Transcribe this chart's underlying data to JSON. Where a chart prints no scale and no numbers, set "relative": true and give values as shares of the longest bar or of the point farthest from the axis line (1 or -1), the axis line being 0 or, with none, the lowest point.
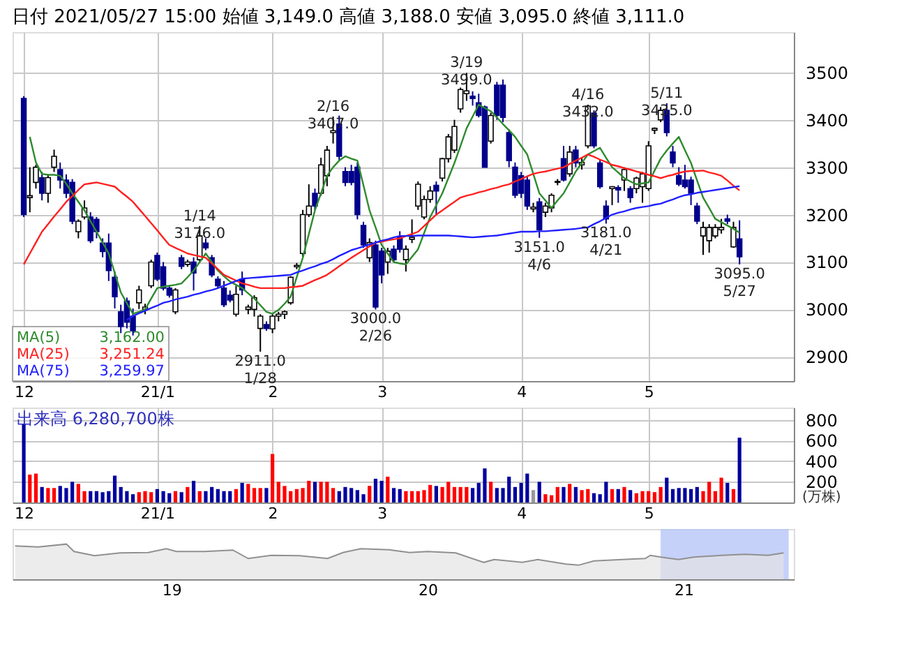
{
  "chart_data": [
    {
      "type": "candlestick",
      "title": "日付 2021/05/27 15:00 始値 3,149.0 高値 3,188.0 安値 3,095.0 終値 3,111.0",
      "categories": [
        "12",
        null,
        null,
        null,
        null,
        null,
        null,
        null,
        null,
        null,
        null,
        null,
        null,
        null,
        null,
        null,
        null,
        null,
        null,
        null,
        null,
        null,
        "21/1",
        null,
        null,
        null,
        null,
        null,
        null,
        null,
        null,
        null,
        null,
        null,
        null,
        null,
        null,
        null,
        null,
        null,
        null,
        "2",
        null,
        null,
        null,
        null,
        null,
        null,
        null,
        null,
        null,
        null,
        null,
        null,
        null,
        null,
        null,
        null,
        null,
        "3",
        null,
        null,
        null,
        null,
        null,
        null,
        null,
        null,
        null,
        null,
        null,
        null,
        null,
        null,
        null,
        null,
        null,
        null,
        null,
        null,
        null,
        null,
        "4",
        null,
        null,
        null,
        null,
        null,
        null,
        null,
        null,
        null,
        null,
        null,
        null,
        null,
        null,
        null,
        null,
        null,
        null,
        null,
        null,
        "5",
        null,
        null,
        null,
        null,
        null,
        null,
        null,
        null,
        null,
        null,
        null,
        null,
        null,
        null,
        null
      ],
      "ohlc": [
        [
          3445,
          3450,
          3195,
          3200
        ],
        [
          3236,
          3300,
          3205,
          3240
        ],
        [
          3268,
          3305,
          3255,
          3300
        ],
        [
          3278,
          3290,
          3230,
          3245
        ],
        [
          3245,
          3285,
          3225,
          3278
        ],
        [
          3300,
          3337,
          3290,
          3323
        ],
        [
          3295,
          3310,
          3255,
          3273
        ],
        [
          3273,
          3285,
          3235,
          3245
        ],
        [
          3268,
          3275,
          3180,
          3186
        ],
        [
          3164,
          3190,
          3150,
          3186
        ],
        [
          3195,
          3230,
          3190,
          3214
        ],
        [
          3195,
          3205,
          3140,
          3145
        ],
        [
          3190,
          3195,
          3150,
          3164
        ],
        [
          3140,
          3150,
          3110,
          3122
        ],
        [
          3140,
          3160,
          3060,
          3082
        ],
        [
          3068,
          3080,
          3002,
          3027
        ],
        [
          2995,
          3010,
          2950,
          2964
        ],
        [
          3018,
          3025,
          2960,
          2973
        ],
        [
          2986,
          3002,
          2945,
          2955
        ],
        [
          3014,
          3050,
          3001,
          3041
        ],
        [
          3000,
          3012,
          2990,
          3005
        ],
        [
          3050,
          3105,
          3045,
          3100
        ],
        [
          3114,
          3120,
          3060,
          3064
        ],
        [
          3090,
          3100,
          3040,
          3045
        ],
        [
          3045,
          3050,
          3025,
          3030
        ],
        [
          2995,
          3045,
          2990,
          3041
        ],
        [
          3109,
          3115,
          3085,
          3091
        ],
        [
          3095,
          3105,
          3090,
          3100
        ],
        [
          3100,
          3110,
          3040,
          3077
        ],
        [
          3105,
          3176,
          3100,
          3155
        ],
        [
          3140,
          3150,
          3125,
          3130
        ],
        [
          3109,
          3115,
          3068,
          3073
        ],
        [
          3064,
          3070,
          3045,
          3050
        ],
        [
          3045,
          3060,
          3005,
          3010
        ],
        [
          3030,
          3040,
          3015,
          3020
        ],
        [
          2990,
          3050,
          2985,
          3032
        ],
        [
          3064,
          3080,
          3030,
          3041
        ],
        [
          3000,
          3010,
          2990,
          3005
        ],
        [
          3000,
          3030,
          2985,
          3025
        ],
        [
          2960,
          2990,
          2911,
          2986
        ],
        [
          2968,
          2975,
          2955,
          2960
        ],
        [
          2959,
          2990,
          2950,
          2986
        ],
        [
          2986,
          2995,
          2975,
          2990
        ],
        [
          2990,
          2998,
          2980,
          2995
        ],
        [
          3014,
          3070,
          3010,
          3068
        ],
        [
          3090,
          3098,
          3085,
          3093
        ],
        [
          3118,
          3210,
          3110,
          3200
        ],
        [
          3200,
          3264,
          3195,
          3218
        ],
        [
          3245,
          3255,
          3210,
          3218
        ],
        [
          3245,
          3320,
          3240,
          3305
        ],
        [
          3282,
          3345,
          3260,
          3336
        ],
        [
          3373,
          3407,
          3350,
          3377
        ],
        [
          3391,
          3409,
          3315,
          3323
        ],
        [
          3291,
          3300,
          3260,
          3268
        ],
        [
          3291,
          3305,
          3262,
          3268
        ],
        [
          3300,
          3310,
          3190,
          3200
        ],
        [
          3177,
          3185,
          3130,
          3136
        ],
        [
          3109,
          3150,
          3100,
          3141
        ],
        [
          3136,
          3145,
          3000,
          3005
        ],
        [
          3123,
          3130,
          3055,
          3073
        ],
        [
          3100,
          3130,
          3075,
          3123
        ],
        [
          3127,
          3135,
          3100,
          3105
        ],
        [
          3154,
          3165,
          3120,
          3127
        ],
        [
          3105,
          3135,
          3080,
          3127
        ],
        [
          3148,
          3190,
          3140,
          3152
        ],
        [
          3218,
          3270,
          3210,
          3264
        ],
        [
          3195,
          3240,
          3190,
          3232
        ],
        [
          3232,
          3260,
          3225,
          3250
        ],
        [
          3262,
          3270,
          3200,
          3250
        ],
        [
          3277,
          3320,
          3270,
          3318
        ],
        [
          3318,
          3370,
          3310,
          3364
        ],
        [
          3336,
          3400,
          3330,
          3386
        ],
        [
          3423,
          3468,
          3415,
          3464
        ],
        [
          3455,
          3499,
          3440,
          3461
        ],
        [
          3450,
          3460,
          3430,
          3445
        ],
        [
          3436,
          3455,
          3405,
          3409
        ],
        [
          3427,
          3430,
          3300,
          3300
        ],
        [
          3355,
          3415,
          3350,
          3409
        ],
        [
          3473,
          3480,
          3400,
          3409
        ],
        [
          3473,
          3485,
          3395,
          3405
        ],
        [
          3373,
          3380,
          3300,
          3314
        ],
        [
          3300,
          3310,
          3235,
          3241
        ],
        [
          3282,
          3290,
          3235,
          3245
        ],
        [
          3273,
          3280,
          3210,
          3218
        ],
        [
          3212,
          3225,
          3205,
          3216
        ],
        [
          3227,
          3235,
          3151,
          3168
        ],
        [
          3205,
          3225,
          3195,
          3218
        ],
        [
          3214,
          3245,
          3205,
          3241
        ],
        [
          3268,
          3275,
          3262,
          3270
        ],
        [
          3318,
          3345,
          3270,
          3273
        ],
        [
          3286,
          3345,
          3280,
          3332
        ],
        [
          3336,
          3345,
          3300,
          3309
        ],
        [
          3305,
          3320,
          3295,
          3310
        ],
        [
          3345,
          3432,
          3340,
          3429
        ],
        [
          3414,
          3420,
          3340,
          3345
        ],
        [
          3309,
          3315,
          3255,
          3259
        ],
        [
          3218,
          3230,
          3181,
          3191
        ],
        [
          3255,
          3260,
          3220,
          3259
        ],
        [
          3257,
          3262,
          3225,
          3252
        ],
        [
          3273,
          3300,
          3250,
          3295
        ],
        [
          3255,
          3260,
          3225,
          3236
        ],
        [
          3255,
          3280,
          3245,
          3277
        ],
        [
          3259,
          3290,
          3225,
          3286
        ],
        [
          3255,
          3355,
          3250,
          3345
        ],
        [
          3378,
          3384,
          3370,
          3382
        ],
        [
          3400,
          3427,
          3395,
          3420
        ],
        [
          3420,
          3435,
          3365,
          3373
        ],
        [
          3332,
          3345,
          3300,
          3309
        ],
        [
          3282,
          3300,
          3260,
          3264
        ],
        [
          3273,
          3305,
          3255,
          3259
        ],
        [
          3273,
          3280,
          3220,
          3245
        ],
        [
          3218,
          3225,
          3180,
          3186
        ],
        [
          3155,
          3185,
          3115,
          3173
        ],
        [
          3145,
          3180,
          3120,
          3173
        ],
        [
          3155,
          3180,
          3150,
          3173
        ],
        [
          3168,
          3191,
          3160,
          3173
        ],
        [
          3191,
          3200,
          3180,
          3186
        ],
        [
          3132,
          3185,
          3130,
          3173
        ],
        [
          3149,
          3188,
          3095,
          3111
        ]
      ],
      "series": [
        {
          "name": "MA(5) 3,162.00",
          "type": "line",
          "color": "#2e8b2e",
          "values": [
            null,
            3364,
            3310,
            3286,
            3284,
            3284,
            3282,
            3265,
            3245,
            3227,
            3209,
            3186,
            3164,
            3141,
            3118,
            3077,
            3036,
            3013,
            2991,
            2995,
            3000,
            3023,
            3045,
            3048,
            3050,
            3052,
            3055,
            3068,
            3082,
            3100,
            3118,
            3100,
            3082,
            3070,
            3059,
            3052,
            3045,
            3034,
            3023,
            3009,
            2995,
            2991,
            2999,
            3012,
            3027,
            3068,
            3109,
            3159,
            3209,
            3245,
            3282,
            3300,
            3314,
            3323,
            3318,
            3314,
            3262,
            3209,
            3173,
            3136,
            3118,
            3100,
            3097,
            3095,
            3111,
            3127,
            3161,
            3195,
            3220,
            3245,
            3277,
            3309,
            3345,
            3382,
            3407,
            3432,
            3425,
            3418,
            3405,
            3391,
            3378,
            3364,
            3345,
            3327,
            3286,
            3245,
            3230,
            3214,
            3230,
            3245,
            3268,
            3291,
            3309,
            3327,
            3334,
            3341,
            3320,
            3300,
            3289,
            3277,
            3270,
            3264,
            3266,
            3268,
            3293,
            3318,
            3335,
            3350,
            3364,
            3336,
            3309,
            3272,
            3236,
            3214,
            3191,
            3184,
            3177,
            3170,
            3162
          ]
        },
        {
          "name": "MA(25) 3,251.24",
          "type": "line",
          "color": "#ff2020",
          "values": [
            3095,
            3118,
            3141,
            3164,
            3180,
            3196,
            3211,
            3227,
            3239,
            3252,
            3264,
            3266,
            3268,
            3265,
            3262,
            3259,
            3248,
            3238,
            3227,
            3212,
            3197,
            3182,
            3167,
            3151,
            3136,
            3130,
            3124,
            3118,
            3115,
            3112,
            3109,
            3097,
            3085,
            3073,
            3067,
            3061,
            3055,
            3052,
            3048,
            3045,
            3045,
            3045,
            3045,
            3045,
            3047,
            3048,
            3050,
            3056,
            3062,
            3067,
            3073,
            3082,
            3091,
            3100,
            3109,
            3117,
            3125,
            3133,
            3141,
            3143,
            3146,
            3148,
            3150,
            3155,
            3159,
            3164,
            3176,
            3188,
            3200,
            3209,
            3218,
            3227,
            3236,
            3240,
            3243,
            3247,
            3250,
            3254,
            3257,
            3261,
            3264,
            3270,
            3275,
            3281,
            3286,
            3289,
            3291,
            3294,
            3297,
            3300,
            3307,
            3314,
            3320,
            3327,
            3322,
            3316,
            3311,
            3305,
            3302,
            3298,
            3295,
            3291,
            3288,
            3284,
            3281,
            3277,
            3281,
            3284,
            3288,
            3291,
            3292,
            3292,
            3293,
            3289,
            3286,
            3282,
            3272,
            3261,
            3251
          ]
        },
        {
          "name": "MA(75) 3,259.97",
          "type": "line",
          "color": "#2020ff",
          "values": [
            null,
            null,
            null,
            null,
            null,
            null,
            null,
            null,
            null,
            null,
            null,
            null,
            null,
            null,
            null,
            null,
            null,
            2978,
            2986,
            2992,
            2997,
            3003,
            3008,
            3014,
            3017,
            3021,
            3024,
            3027,
            3031,
            3034,
            3038,
            3041,
            3045,
            3050,
            3055,
            3060,
            3065,
            3066,
            3067,
            3068,
            3069,
            3070,
            3071,
            3072,
            3073,
            3078,
            3082,
            3087,
            3091,
            3096,
            3100,
            3106,
            3113,
            3119,
            3125,
            3129,
            3133,
            3137,
            3141,
            3145,
            3148,
            3152,
            3155,
            3155,
            3155,
            3156,
            3156,
            3156,
            3156,
            3156,
            3156,
            3155,
            3154,
            3153,
            3152,
            3153,
            3154,
            3155,
            3156,
            3158,
            3160,
            3162,
            3164,
            3164,
            3164,
            3165,
            3165,
            3166,
            3167,
            3168,
            3169,
            3170,
            3172,
            3173,
            3180,
            3186,
            3193,
            3200,
            3204,
            3207,
            3211,
            3214,
            3216,
            3218,
            3221,
            3223,
            3228,
            3232,
            3237,
            3241,
            3243,
            3246,
            3248,
            3250,
            3252,
            3254,
            3256,
            3258,
            3260
          ]
        }
      ],
      "annotations": [
        {
          "text": "1/14\n3176.0",
          "y": 3176
        },
        {
          "text": "2911.0\n1/28",
          "y": 2911
        },
        {
          "text": "2/16\n3407.0",
          "y": 3407
        },
        {
          "text": "3000.0\n2/26",
          "y": 3000
        },
        {
          "text": "3/19\n3499.0",
          "y": 3499
        },
        {
          "text": "3151.0\n4/6",
          "y": 3151
        },
        {
          "text": "4/16\n3432.0",
          "y": 3432
        },
        {
          "text": "3181.0\n4/21",
          "y": 3181
        },
        {
          "text": "5/11\n3435.0",
          "y": 3435
        },
        {
          "text": "3095.0\n5/27",
          "y": 3095
        }
      ],
      "ylim": [
        2849,
        3585
      ],
      "yticks": [
        2900,
        3000,
        3100,
        3200,
        3300,
        3400,
        3500
      ],
      "grid": true
    },
    {
      "type": "bar",
      "ylabel": "(万株)",
      "annotations": [
        "出来高 6,280,700株"
      ],
      "categories": [
        "12",
        null,
        null,
        null,
        null,
        null,
        null,
        null,
        null,
        null,
        null,
        null,
        null,
        null,
        null,
        null,
        null,
        null,
        null,
        null,
        null,
        null,
        "21/1",
        null,
        null,
        null,
        null,
        null,
        null,
        null,
        null,
        null,
        null,
        null,
        null,
        null,
        null,
        null,
        null,
        null,
        null,
        "2",
        null,
        null,
        null,
        null,
        null,
        null,
        null,
        null,
        null,
        null,
        null,
        null,
        null,
        null,
        null,
        null,
        null,
        "3",
        null,
        null,
        null,
        null,
        null,
        null,
        null,
        null,
        null,
        null,
        null,
        null,
        null,
        null,
        null,
        null,
        null,
        null,
        null,
        null,
        null,
        null,
        "4",
        null,
        null,
        null,
        null,
        null,
        null,
        null,
        null,
        null,
        null,
        null,
        null,
        null,
        null,
        null,
        null,
        null,
        null,
        null,
        null,
        "5",
        null,
        null,
        null,
        null,
        null,
        null,
        null,
        null,
        null,
        null,
        null,
        null,
        null,
        null,
        null
      ],
      "values": [
        760,
        270,
        280,
        150,
        140,
        140,
        160,
        140,
        200,
        180,
        110,
        110,
        110,
        100,
        110,
        260,
        150,
        110,
        80,
        100,
        110,
        100,
        130,
        110,
        90,
        110,
        100,
        150,
        210,
        110,
        110,
        150,
        130,
        110,
        110,
        130,
        190,
        180,
        140,
        140,
        140,
        470,
        200,
        160,
        110,
        130,
        140,
        210,
        200,
        200,
        200,
        140,
        110,
        150,
        140,
        120,
        80,
        160,
        230,
        210,
        250,
        140,
        130,
        110,
        110,
        110,
        120,
        170,
        160,
        150,
        200,
        150,
        150,
        150,
        140,
        190,
        330,
        200,
        140,
        140,
        250,
        150,
        190,
        280,
        120,
        200,
        80,
        70,
        150,
        150,
        180,
        150,
        120,
        130,
        90,
        80,
        200,
        130,
        130,
        150,
        120,
        90,
        110,
        110,
        100,
        150,
        240,
        130,
        140,
        140,
        130,
        150,
        110,
        200,
        110,
        240,
        190,
        130,
        628
      ],
      "colors": [
        "#0000a0",
        "#ff0000",
        "#ff0000",
        "#0000a0",
        "#ff0000",
        "#ff0000",
        "#0000a0",
        "#0000a0",
        "#0000a0",
        "#ff0000",
        "#ff0000",
        "#0000a0",
        "#0000a0",
        "#0000a0",
        "#0000a0",
        "#0000a0",
        "#0000a0",
        "#0000a0",
        "#0000a0",
        "#ff0000",
        "#ff0000",
        "#ff0000",
        "#0000a0",
        "#0000a0",
        "#0000a0",
        "#ff0000",
        "#0000a0",
        "#ff0000",
        "#0000a0",
        "#ff0000",
        "#0000a0",
        "#0000a0",
        "#0000a0",
        "#0000a0",
        "#0000a0",
        "#ff0000",
        "#0000a0",
        "#ff0000",
        "#ff0000",
        "#ff0000",
        "#0000a0",
        "#ff0000",
        "#ff0000",
        "#ff0000",
        "#ff0000",
        "#ff0000",
        "#ff0000",
        "#ff0000",
        "#0000a0",
        "#ff0000",
        "#ff0000",
        "#ff0000",
        "#0000a0",
        "#0000a0",
        "#0000a0",
        "#0000a0",
        "#0000a0",
        "#ff0000",
        "#0000a0",
        "#0000a0",
        "#ff0000",
        "#0000a0",
        "#0000a0",
        "#ff0000",
        "#ff0000",
        "#ff0000",
        "#ff0000",
        "#ff0000",
        "#0000a0",
        "#ff0000",
        "#ff0000",
        "#ff0000",
        "#ff0000",
        "#ff0000",
        "#0000a0",
        "#0000a0",
        "#0000a0",
        "#ff0000",
        "#0000a0",
        "#0000a0",
        "#0000a0",
        "#0000a0",
        "#0000a0",
        "#0000a0",
        "#999999",
        "#0000a0",
        "#ff0000",
        "#ff0000",
        "#ff0000",
        "#0000a0",
        "#ff0000",
        "#0000a0",
        "#ff0000",
        "#ff0000",
        "#0000a0",
        "#0000a0",
        "#0000a0",
        "#ff0000",
        "#0000a0",
        "#ff0000",
        "#0000a0",
        "#ff0000",
        "#ff0000",
        "#ff0000",
        "#ff0000",
        "#ff0000",
        "#0000a0",
        "#0000a0",
        "#0000a0",
        "#0000a0",
        "#0000a0",
        "#0000a0",
        "#ff0000",
        "#ff0000",
        "#ff0000",
        "#ff0000",
        "#0000a0",
        "#ff0000",
        "#0000a0"
      ],
      "ylim": [
        0,
        920
      ],
      "yticks": [
        200,
        400,
        600,
        800
      ],
      "grid": true
    },
    {
      "type": "area",
      "relative": true,
      "tick_labels": "x",
      "color": "#909090",
      "x": [
        2018.39,
        2018.48,
        2018.59,
        2018.62,
        2018.7,
        2018.8,
        2018.91,
        2018.98,
        2019.02,
        2019.13,
        2019.24,
        2019.3,
        2019.39,
        2019.5,
        2019.61,
        2019.67,
        2019.74,
        2019.85,
        2019.93,
        2020.0,
        2020.11,
        2020.22,
        2020.26,
        2020.37,
        2020.43,
        2020.54,
        2020.59,
        2020.65,
        2020.76,
        2020.85,
        2020.87,
        2020.91,
        2020.98,
        2021.04,
        2021.15,
        2021.24,
        2021.33,
        2021.39
      ],
      "values": [
        0.95,
        0.92,
        1,
        0.79,
        0.67,
        0.75,
        0.76,
        0.87,
        0.79,
        0.79,
        0.83,
        0.59,
        0.68,
        0.67,
        0.59,
        0.76,
        0.87,
        0.84,
        0.76,
        0.79,
        0.75,
        0.48,
        0.56,
        0.48,
        0.56,
        0.43,
        0.4,
        0.52,
        0.56,
        0.59,
        0.68,
        0.63,
        0.56,
        0.63,
        0.68,
        0.71,
        0.68,
        0.75
      ],
      "xlim": [
        2018.38,
        2021.43
      ],
      "xticks": [
        {
          "value": 2019,
          "label": "19"
        },
        {
          "value": 2020,
          "label": "20"
        },
        {
          "value": 2021,
          "label": "21"
        }
      ],
      "bands": [
        {
          "axis": "x",
          "from": 2020.91,
          "to": 2021.41,
          "color": "#b8c6f8"
        }
      ]
    }
  ]
}
